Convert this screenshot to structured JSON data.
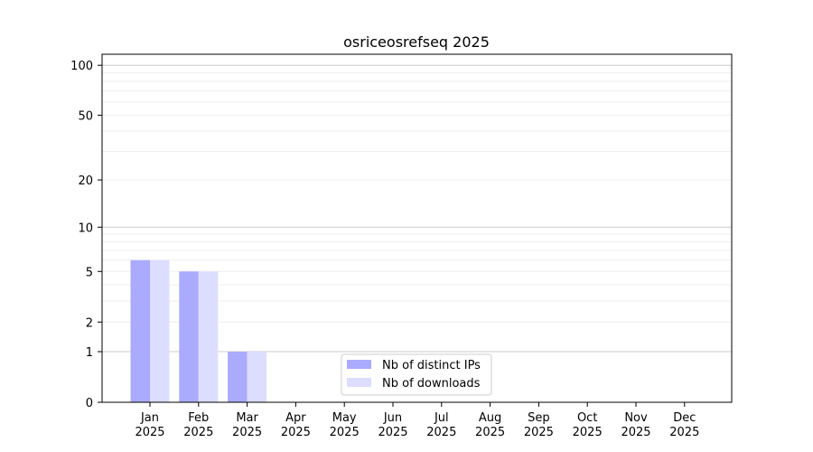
{
  "chart_data": {
    "type": "bar",
    "title": "osriceosrefseq 2025",
    "categories": [
      "Jan\n2025",
      "Feb\n2025",
      "Mar\n2025",
      "Apr\n2025",
      "May\n2025",
      "Jun\n2025",
      "Jul\n2025",
      "Aug\n2025",
      "Sep\n2025",
      "Oct\n2025",
      "Nov\n2025",
      "Dec\n2025"
    ],
    "y_scale": "log(1+x)",
    "yticks": [
      0,
      1,
      2,
      5,
      10,
      20,
      50,
      100
    ],
    "ylim": [
      0,
      116
    ],
    "grid": true,
    "legend_position": "bottom-center",
    "series": [
      {
        "name": "Nb of distinct IPs",
        "color": "#aaaaff",
        "values": [
          6,
          5,
          1,
          0,
          0,
          0,
          0,
          0,
          0,
          0,
          0,
          0
        ]
      },
      {
        "name": "Nb of downloads",
        "color": "#ddddff",
        "values": [
          6,
          5,
          1,
          0,
          0,
          0,
          0,
          0,
          0,
          0,
          0,
          0
        ]
      }
    ]
  }
}
